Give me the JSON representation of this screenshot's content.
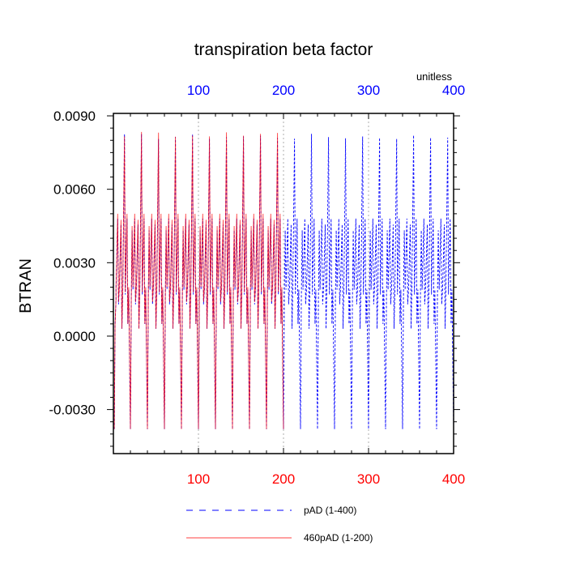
{
  "chart_data": {
    "type": "line",
    "title": "transpiration beta factor",
    "units_label": "unitless",
    "ylabel": "BTRAN",
    "xlabel": "",
    "xlim": [
      0,
      400
    ],
    "ylim": [
      -0.0048,
      0.0091
    ],
    "x_ticks": [
      100,
      200,
      300,
      400
    ],
    "x_tick_labels": [
      "100",
      "200",
      "300",
      "400"
    ],
    "y_ticks": [
      -0.003,
      0.0,
      0.003,
      0.006,
      0.009
    ],
    "y_tick_labels": [
      "-0.0030",
      "0.0000",
      "0.0030",
      "0.0060",
      "0.0090"
    ],
    "bottom_axis_color": "#ff0000",
    "top_axis_color": "#0000ff",
    "grid": "vertical dotted at 100, 200, 300",
    "legend_position": "bottom",
    "series": [
      {
        "name": "pAD (1-400)",
        "color": "#0000ff",
        "dash": "dashed",
        "x_range": [
          1,
          400
        ],
        "cycle_length": 20,
        "peak": 0.0082,
        "trough": -0.0038,
        "baseline": 0.0019,
        "secondary_peak": 0.0048
      },
      {
        "name": "460pAD (1-200)",
        "color": "#ff0000",
        "dash": "solid",
        "x_range": [
          1,
          200
        ],
        "cycle_length": 20,
        "peak": 0.0083,
        "trough": -0.0038,
        "baseline": 0.002,
        "secondary_peak": 0.005
      }
    ]
  }
}
